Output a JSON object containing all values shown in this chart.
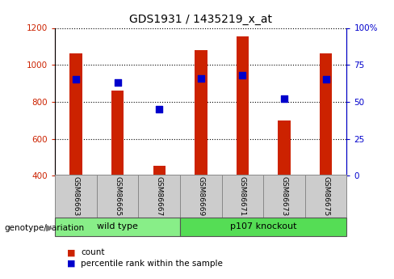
{
  "title": "GDS1931 / 1435219_x_at",
  "samples": [
    "GSM86663",
    "GSM86665",
    "GSM86667",
    "GSM86669",
    "GSM86671",
    "GSM86673",
    "GSM86675"
  ],
  "counts": [
    1060,
    860,
    455,
    1080,
    1155,
    700,
    1060
  ],
  "percentile_ranks": [
    65,
    63,
    45,
    66,
    68,
    52,
    65
  ],
  "ylim_left": [
    400,
    1200
  ],
  "ylim_right": [
    0,
    100
  ],
  "yticks_left": [
    400,
    600,
    800,
    1000,
    1200
  ],
  "yticks_right": [
    0,
    25,
    50,
    75,
    100
  ],
  "yticklabels_right": [
    "0",
    "25",
    "50",
    "75",
    "100%"
  ],
  "groups": [
    {
      "label": "wild type",
      "indices": [
        0,
        1,
        2
      ],
      "color": "#88ee88"
    },
    {
      "label": "p107 knockout",
      "indices": [
        3,
        4,
        5,
        6
      ],
      "color": "#55dd55"
    }
  ],
  "bar_color": "#cc2200",
  "dot_color": "#0000cc",
  "bar_width": 0.3,
  "dot_size": 40,
  "left_tick_color": "#cc2200",
  "right_tick_color": "#0000cc",
  "group_label": "genotype/variation",
  "legend_items": [
    "count",
    "percentile rank within the sample"
  ],
  "background_color": "#ffffff",
  "xticklabel_bg": "#cccccc"
}
